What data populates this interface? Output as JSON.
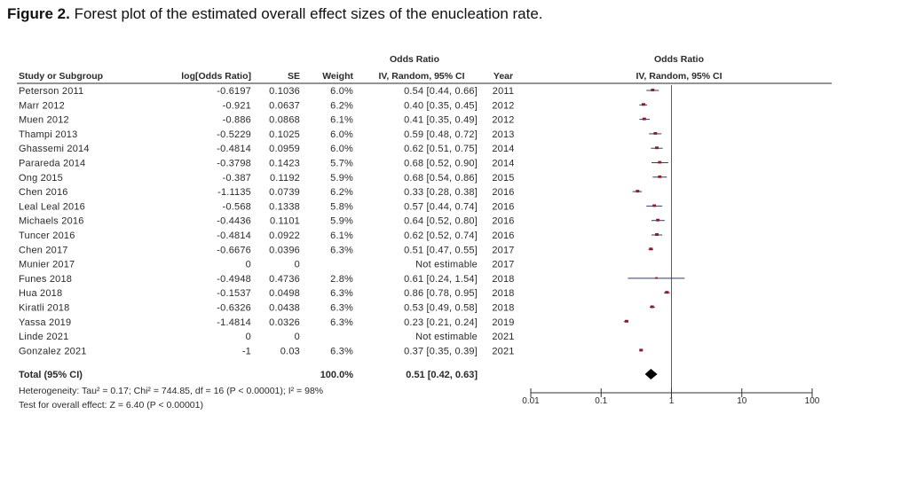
{
  "caption": {
    "label": "Figure 2.",
    "text": "Forest plot of the estimated overall effect sizes of the enucleation rate."
  },
  "chart_data": {
    "type": "forest",
    "headers": {
      "study": "Study or Subgroup",
      "log_or": "log[Odds Ratio]",
      "se": "SE",
      "weight": "Weight",
      "or_group": "Odds Ratio",
      "or_sub": "IV, Random, 95% CI",
      "year": "Year",
      "plot_group": "Odds Ratio",
      "plot_sub": "IV, Random, 95% CI"
    },
    "studies": [
      {
        "name": "Peterson 2011",
        "log_or": "-0.6197",
        "se": "0.1036",
        "weight": "6.0%",
        "ci_text": "0.54 [0.44, 0.66]",
        "year": "2011",
        "or": 0.54,
        "lo": 0.44,
        "hi": 0.66
      },
      {
        "name": "Marr 2012",
        "log_or": "-0.921",
        "se": "0.0637",
        "weight": "6.2%",
        "ci_text": "0.40 [0.35, 0.45]",
        "year": "2012",
        "or": 0.4,
        "lo": 0.35,
        "hi": 0.45
      },
      {
        "name": "Muen 2012",
        "log_or": "-0.886",
        "se": "0.0868",
        "weight": "6.1%",
        "ci_text": "0.41 [0.35, 0.49]",
        "year": "2012",
        "or": 0.41,
        "lo": 0.35,
        "hi": 0.49
      },
      {
        "name": "Thampi 2013",
        "log_or": "-0.5229",
        "se": "0.1025",
        "weight": "6.0%",
        "ci_text": "0.59 [0.48, 0.72]",
        "year": "2013",
        "or": 0.59,
        "lo": 0.48,
        "hi": 0.72
      },
      {
        "name": "Ghassemi 2014",
        "log_or": "-0.4814",
        "se": "0.0959",
        "weight": "6.0%",
        "ci_text": "0.62 [0.51, 0.75]",
        "year": "2014",
        "or": 0.62,
        "lo": 0.51,
        "hi": 0.75
      },
      {
        "name": "Parareda 2014",
        "log_or": "-0.3798",
        "se": "0.1423",
        "weight": "5.7%",
        "ci_text": "0.68 [0.52, 0.90]",
        "year": "2014",
        "or": 0.68,
        "lo": 0.52,
        "hi": 0.9
      },
      {
        "name": "Ong 2015",
        "log_or": "-0.387",
        "se": "0.1192",
        "weight": "5.9%",
        "ci_text": "0.68 [0.54, 0.86]",
        "year": "2015",
        "or": 0.68,
        "lo": 0.54,
        "hi": 0.86
      },
      {
        "name": "Chen 2016",
        "log_or": "-1.1135",
        "se": "0.0739",
        "weight": "6.2%",
        "ci_text": "0.33 [0.28, 0.38]",
        "year": "2016",
        "or": 0.33,
        "lo": 0.28,
        "hi": 0.38
      },
      {
        "name": "Leal Leal 2016",
        "log_or": "-0.568",
        "se": "0.1338",
        "weight": "5.8%",
        "ci_text": "0.57 [0.44, 0.74]",
        "year": "2016",
        "or": 0.57,
        "lo": 0.44,
        "hi": 0.74
      },
      {
        "name": "Michaels 2016",
        "log_or": "-0.4436",
        "se": "0.1101",
        "weight": "5.9%",
        "ci_text": "0.64 [0.52, 0.80]",
        "year": "2016",
        "or": 0.64,
        "lo": 0.52,
        "hi": 0.8
      },
      {
        "name": "Tuncer 2016",
        "log_or": "-0.4814",
        "se": "0.0922",
        "weight": "6.1%",
        "ci_text": "0.62 [0.52, 0.74]",
        "year": "2016",
        "or": 0.62,
        "lo": 0.52,
        "hi": 0.74
      },
      {
        "name": "Chen 2017",
        "log_or": "-0.6676",
        "se": "0.0396",
        "weight": "6.3%",
        "ci_text": "0.51 [0.47, 0.55]",
        "year": "2017",
        "or": 0.51,
        "lo": 0.47,
        "hi": 0.55
      },
      {
        "name": "Munier 2017",
        "log_or": "0",
        "se": "0",
        "weight": "",
        "ci_text": "Not estimable",
        "year": "2017",
        "or": null,
        "lo": null,
        "hi": null
      },
      {
        "name": "Funes 2018",
        "log_or": "-0.4948",
        "se": "0.4736",
        "weight": "2.8%",
        "ci_text": "0.61 [0.24, 1.54]",
        "year": "2018",
        "or": 0.61,
        "lo": 0.24,
        "hi": 1.54
      },
      {
        "name": "Hua 2018",
        "log_or": "-0.1537",
        "se": "0.0498",
        "weight": "6.3%",
        "ci_text": "0.86 [0.78, 0.95]",
        "year": "2018",
        "or": 0.86,
        "lo": 0.78,
        "hi": 0.95
      },
      {
        "name": "Kiratli 2018",
        "log_or": "-0.6326",
        "se": "0.0438",
        "weight": "6.3%",
        "ci_text": "0.53 [0.49, 0.58]",
        "year": "2018",
        "or": 0.53,
        "lo": 0.49,
        "hi": 0.58
      },
      {
        "name": "Yassa 2019",
        "log_or": "-1.4814",
        "se": "0.0326",
        "weight": "6.3%",
        "ci_text": "0.23 [0.21, 0.24]",
        "year": "2019",
        "or": 0.23,
        "lo": 0.21,
        "hi": 0.24
      },
      {
        "name": "Linde 2021",
        "log_or": "0",
        "se": "0",
        "weight": "",
        "ci_text": "Not estimable",
        "year": "2021",
        "or": null,
        "lo": null,
        "hi": null
      },
      {
        "name": "Gonzalez 2021",
        "log_or": "-1",
        "se": "0.03",
        "weight": "6.3%",
        "ci_text": "0.37 [0.35, 0.39]",
        "year": "2021",
        "or": 0.37,
        "lo": 0.35,
        "hi": 0.39
      }
    ],
    "total": {
      "label": "Total (95% CI)",
      "weight": "100.0%",
      "ci_text": "0.51 [0.42, 0.63]",
      "or": 0.51,
      "lo": 0.42,
      "hi": 0.63
    },
    "heterogeneity": "Heterogeneity: Tau² = 0.17; Chi² = 744.85, df = 16 (P < 0.00001); I² = 98%",
    "overall_effect": "Test for overall effect: Z = 6.40 (P < 0.00001)",
    "x_axis": {
      "scale": "log",
      "range": [
        0.01,
        100
      ],
      "ticks": [
        0.01,
        0.1,
        1,
        10,
        100
      ],
      "tick_labels": [
        "0.01",
        "0.1",
        "1",
        "10",
        "100"
      ],
      "reference_line": 1
    },
    "colors": {
      "point": "#8a1d2a",
      "ci_line": "#2c3e6a",
      "diamond": "#000000",
      "axis": "#333333",
      "rule": "#555555"
    }
  }
}
